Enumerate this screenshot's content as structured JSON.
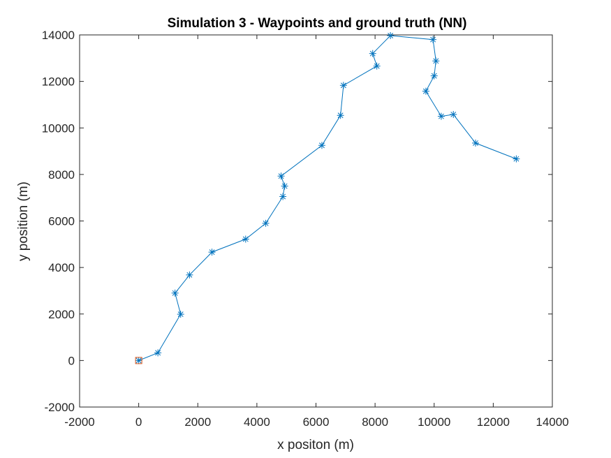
{
  "chart_data": {
    "type": "line",
    "title": "Simulation 3 - Waypoints and ground truth (NN)",
    "xlabel": "x positon (m)",
    "ylabel": "y position (m)",
    "xlim": [
      -2000,
      14000
    ],
    "ylim": [
      -2000,
      14000
    ],
    "xticks": [
      "-2000",
      "0",
      "2000",
      "4000",
      "6000",
      "8000",
      "10000",
      "12000",
      "14000"
    ],
    "yticks": [
      "-2000",
      "0",
      "2000",
      "4000",
      "6000",
      "8000",
      "10000",
      "12000",
      "14000"
    ],
    "grid": false,
    "series": [
      {
        "color": "#0072BD",
        "marker": "asterisk",
        "x": [
          0,
          650,
          1420,
          1230,
          1720,
          2480,
          3620,
          4300,
          4880,
          4940,
          4820,
          6200,
          6830,
          6930,
          8060,
          7920,
          8520,
          9960,
          10060,
          10000,
          9720,
          10240,
          10650,
          11400,
          12780
        ],
        "y": [
          0,
          330,
          1990,
          2900,
          3680,
          4660,
          5220,
          5900,
          7050,
          7500,
          7930,
          9250,
          10540,
          11830,
          12660,
          13200,
          13970,
          13800,
          12880,
          12240,
          11580,
          10500,
          10580,
          9350,
          8670
        ]
      }
    ],
    "start_marker": {
      "x": 0,
      "y": 0,
      "color": "#D95319",
      "marker": "square"
    }
  }
}
